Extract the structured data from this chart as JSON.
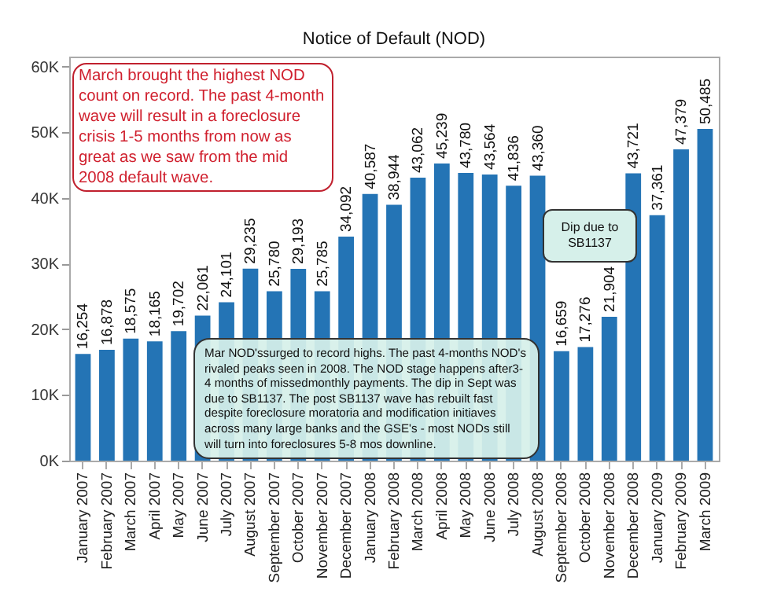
{
  "chart_data": {
    "type": "bar",
    "title": "Notice of Default (NOD)",
    "categories": [
      "January 2007",
      "February 2007",
      "March 2007",
      "April 2007",
      "May 2007",
      "June 2007",
      "July 2007",
      "August 2007",
      "September 2007",
      "October 2007",
      "November 2007",
      "December 2007",
      "January 2008",
      "February 2008",
      "March 2008",
      "April 2008",
      "May 2008",
      "June 2008",
      "July 2008",
      "August 2008",
      "September 2008",
      "October 2008",
      "November 2008",
      "December 2008",
      "January 2009",
      "February 2009",
      "March 2009"
    ],
    "values": [
      16254,
      16878,
      18575,
      18165,
      19702,
      22061,
      24101,
      29235,
      25780,
      29193,
      25785,
      34092,
      40587,
      38944,
      43062,
      45239,
      43780,
      43564,
      41836,
      43360,
      16659,
      17276,
      21904,
      43721,
      37361,
      47379,
      50485
    ],
    "color": "#2474b5",
    "ylim": [
      0,
      61500
    ],
    "yticks": [
      {
        "value": 0,
        "label": "0K"
      },
      {
        "value": 10000,
        "label": "10K"
      },
      {
        "value": 20000,
        "label": "20K"
      },
      {
        "value": 30000,
        "label": "30K"
      },
      {
        "value": 40000,
        "label": "40K"
      },
      {
        "value": 50000,
        "label": "50K"
      },
      {
        "value": 60000,
        "label": "60K"
      }
    ],
    "value_labels": [
      "16,254",
      "16,878",
      "18,575",
      "18,165",
      "19,702",
      "22,061",
      "24,101",
      "29,235",
      "25,780",
      "29,193",
      "25,785",
      "34,092",
      "40,587",
      "38,944",
      "43,062",
      "45,239",
      "43,780",
      "43,564",
      "41,836",
      "43,360",
      "16,659",
      "17,276",
      "21,904",
      "43,721",
      "37,361",
      "47,379",
      "50,485"
    ],
    "annotations": [
      "March brought the highest NOD count on record. The past 4-month wave will result in a foreclosure crisis 1-5 months from now as great as we saw from the mid 2008 default wave.",
      "Dip due to SB1137",
      "Mar NOD'ssurged to record highs.  The past 4-months NOD's rivaled peaks seen in 2008.  The NOD stage happens after3-4 months of missedmonthly payments. The dip in Sept was due to SB1137. The post SB1137 wave has rebuilt fast despite foreclosure moratoria and modification initiaves across many large banks and the GSE's - most NODs still will turn into foreclosures 5-8 mos downline."
    ]
  }
}
